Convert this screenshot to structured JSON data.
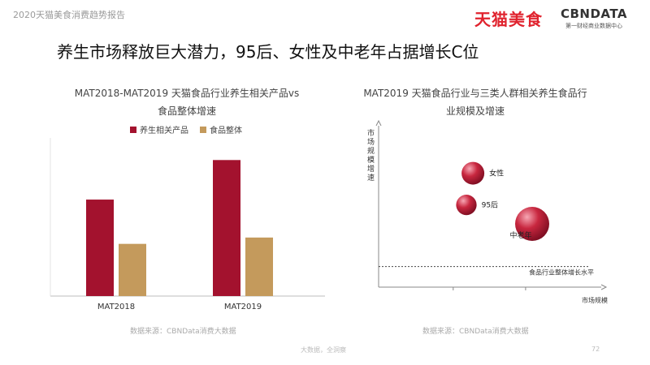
{
  "header": {
    "report_title": "2020天猫美食消费趋势报告",
    "brand_tmall": "天猫美食",
    "brand_cbn": "CBNDATA",
    "brand_cbn_sub": "第一财经商业数据中心"
  },
  "headline": "养生市场释放巨大潜力，95后、女性及中老年占据增长C位",
  "colors": {
    "health": "#a3122e",
    "food": "#c49a5c",
    "bubble": "#c8273f"
  },
  "chart_data": [
    {
      "type": "bar",
      "title": "MAT2018-MAT2019 天猫食品行业养生相关产品vs食品整体增速",
      "title_lines": [
        "MAT2018-MAT2019 天猫食品行业养生相关产品vs",
        "食品整体增速"
      ],
      "categories": [
        "MAT2018",
        "MAT2019"
      ],
      "series": [
        {
          "name": "养生相关产品",
          "values": [
            61,
            86
          ]
        },
        {
          "name": "食品整体",
          "values": [
            33,
            37
          ]
        }
      ],
      "ylim": [
        0,
        100
      ],
      "legend": "top",
      "source": "数据来源：CBNData消费大数据"
    },
    {
      "type": "scatter",
      "title": "MAT2019 天猫食品行业与三类人群相关养生食品行业规模及增速",
      "title_lines": [
        "MAT2019 天猫食品行业与三类人群相关养生食品行",
        "业规模及增速"
      ],
      "xlabel": "市场规模",
      "ylabel": "市场规模增速",
      "points": [
        {
          "label": "女性",
          "x": 4.3,
          "y": 7.2,
          "size": 1.0
        },
        {
          "label": "95后",
          "x": 4.0,
          "y": 5.2,
          "size": 0.9
        },
        {
          "label": "中老年",
          "x": 7.0,
          "y": 4.0,
          "size": 1.5
        }
      ],
      "reference_line": {
        "label": "食品行业整体增长水平",
        "y": 1.3
      },
      "xlim": [
        0,
        10
      ],
      "ylim": [
        0,
        10
      ],
      "source": "数据来源：CBNData消费大数据"
    }
  ],
  "footer": {
    "text": "大数据，全洞察",
    "page": "72"
  }
}
